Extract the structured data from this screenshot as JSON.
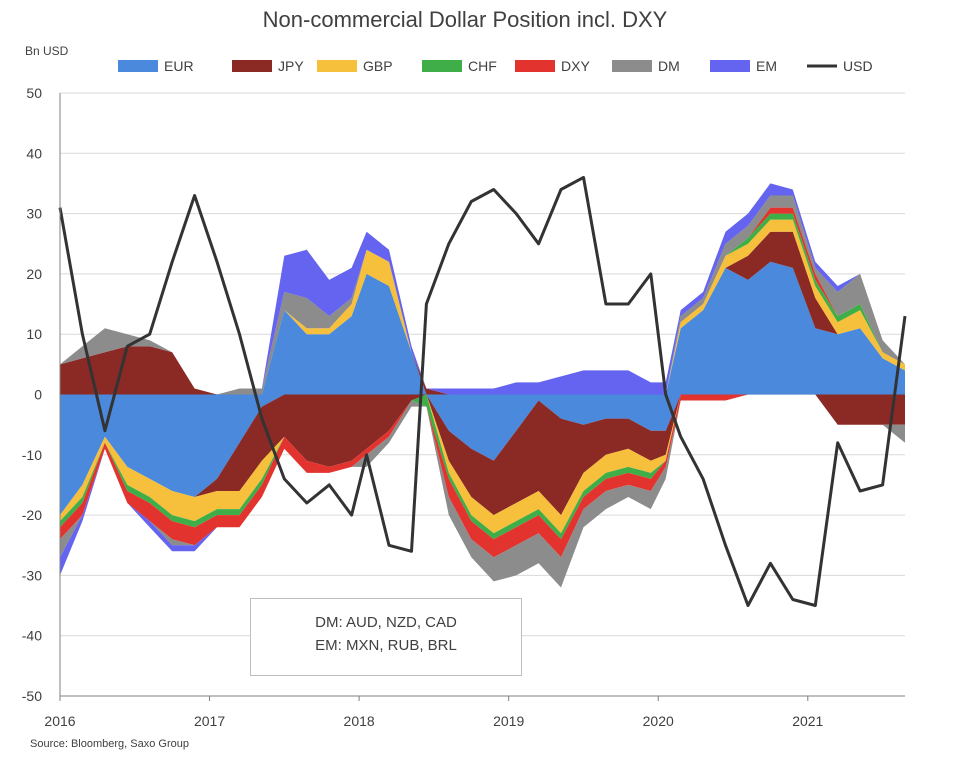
{
  "chart_data": {
    "type": "area",
    "title": "Non-commercial Dollar Position incl. DXY",
    "ylabel": "Bn USD",
    "ylim": [
      -50,
      50
    ],
    "y_ticks": [
      "50",
      "40",
      "30",
      "20",
      "10",
      "0",
      "-10",
      "-20",
      "-30",
      "-40",
      "-50"
    ],
    "x_ticks": [
      "2016",
      "2017",
      "2018",
      "2019",
      "2020",
      "2021"
    ],
    "xlim": [
      2016.0,
      2021.65
    ],
    "grid": "horizontal",
    "legend_position": "top",
    "legend": [
      {
        "name": "EUR",
        "color": "#4a89dc",
        "kind": "area"
      },
      {
        "name": "JPY",
        "color": "#8b2a25",
        "kind": "area"
      },
      {
        "name": "GBP",
        "color": "#f6bf3c",
        "kind": "area"
      },
      {
        "name": "CHF",
        "color": "#3fae49",
        "kind": "area"
      },
      {
        "name": "DXY",
        "color": "#e3332e",
        "kind": "area"
      },
      {
        "name": "DM",
        "color": "#8c8c8c",
        "kind": "area"
      },
      {
        "name": "EM",
        "color": "#6464f0",
        "kind": "area"
      },
      {
        "name": "USD",
        "color": "#333333",
        "kind": "line"
      }
    ],
    "x": [
      2016.0,
      2016.15,
      2016.3,
      2016.45,
      2016.6,
      2016.75,
      2016.9,
      2017.05,
      2017.2,
      2017.35,
      2017.5,
      2017.65,
      2017.8,
      2017.95,
      2018.05,
      2018.2,
      2018.35,
      2018.45,
      2018.6,
      2018.75,
      2018.9,
      2019.05,
      2019.2,
      2019.35,
      2019.5,
      2019.65,
      2019.8,
      2019.95,
      2020.05,
      2020.15,
      2020.3,
      2020.45,
      2020.6,
      2020.75,
      2020.9,
      2021.05,
      2021.2,
      2021.35,
      2021.5,
      2021.65
    ],
    "series": [
      {
        "name": "EUR",
        "color": "#4a89dc",
        "values": [
          -20,
          -15,
          -7,
          -12,
          -14,
          -16,
          -17,
          -14,
          -8,
          -2,
          14,
          10,
          10,
          13,
          20,
          18,
          7,
          0,
          -6,
          -9,
          -11,
          -6,
          -1,
          -4,
          -5,
          -4,
          -4,
          -6,
          -6,
          11,
          14,
          21,
          19,
          22,
          21,
          11,
          10,
          11,
          6,
          4
        ]
      },
      {
        "name": "JPY",
        "color": "#8b2a25",
        "values": [
          5,
          6,
          7,
          8,
          8,
          7,
          1,
          -2,
          -8,
          -9,
          -7,
          -11,
          -12,
          -11,
          -9,
          -6,
          -1,
          1,
          -5,
          -8,
          -9,
          -12,
          -15,
          -16,
          -8,
          -6,
          -5,
          -5,
          -4,
          0,
          0,
          0,
          4,
          5,
          6,
          5,
          -5,
          -5,
          -5,
          -5
        ]
      },
      {
        "name": "GBP",
        "color": "#f6bf3c",
        "values": [
          -1,
          -2,
          -1,
          -3,
          -3,
          -4,
          -4,
          -3,
          -3,
          -3,
          0,
          1,
          1,
          2,
          4,
          4,
          0,
          0,
          -2,
          -3,
          -3,
          -3,
          -3,
          -3,
          -3,
          -3,
          -3,
          -2,
          -1,
          1,
          1,
          2,
          2,
          2,
          2,
          2,
          2,
          3,
          1,
          1
        ]
      },
      {
        "name": "CHF",
        "color": "#3fae49",
        "values": [
          -1,
          -1,
          0,
          -1,
          -1,
          -1,
          -1,
          -1,
          -1,
          -1,
          0,
          0,
          0,
          0,
          0,
          0,
          0,
          -2,
          -1,
          -1,
          -1,
          -1,
          -1,
          -1,
          -1,
          -1,
          -1,
          -1,
          0,
          0,
          0,
          0,
          1,
          1,
          1,
          1,
          1,
          1,
          0,
          0
        ]
      },
      {
        "name": "DXY",
        "color": "#e3332e",
        "values": [
          -2,
          -2,
          -1,
          -2,
          -3,
          -3,
          -3,
          -2,
          -2,
          -2,
          -2,
          -2,
          -1,
          -1,
          -1,
          -1,
          0,
          0,
          -3,
          -3,
          -3,
          -3,
          -3,
          -3,
          -2,
          -2,
          -2,
          -2,
          -1,
          -1,
          -1,
          -1,
          0,
          1,
          1,
          1,
          0,
          0,
          0,
          0
        ]
      },
      {
        "name": "DM",
        "color": "#8c8c8c",
        "values": [
          -3,
          2,
          4,
          2,
          1,
          -1,
          0,
          0,
          1,
          1,
          3,
          5,
          2,
          1,
          -2,
          -1,
          -1,
          0,
          -3,
          -3,
          -4,
          -5,
          -5,
          -5,
          -3,
          -3,
          -2,
          -3,
          -2,
          1,
          1,
          2,
          2,
          2,
          2,
          1,
          4,
          5,
          2,
          -3
        ]
      },
      {
        "name": "EM",
        "color": "#6464f0",
        "values": [
          -3,
          -1,
          0,
          0,
          -1,
          -1,
          -1,
          0,
          0,
          0,
          6,
          8,
          6,
          5,
          3,
          2,
          1,
          0,
          1,
          1,
          1,
          2,
          2,
          3,
          4,
          4,
          4,
          2,
          2,
          1,
          1,
          2,
          2,
          2,
          1,
          1,
          1,
          0,
          0,
          0
        ]
      },
      {
        "name": "USD",
        "color": "#333333",
        "values": [
          31,
          10,
          -6,
          8,
          10,
          22,
          33,
          22,
          10,
          -4,
          -14,
          -18,
          -15,
          -20,
          -10,
          -25,
          -26,
          15,
          25,
          32,
          34,
          30,
          25,
          34,
          36,
          15,
          15,
          20,
          0,
          -7,
          -14,
          -25,
          -35,
          -28,
          -34,
          -35,
          -8,
          -16,
          -15,
          13
        ]
      }
    ],
    "annotation": [
      "DM: AUD, NZD, CAD",
      "EM: MXN, RUB, BRL"
    ],
    "source": "Source: Bloomberg, Saxo Group"
  }
}
